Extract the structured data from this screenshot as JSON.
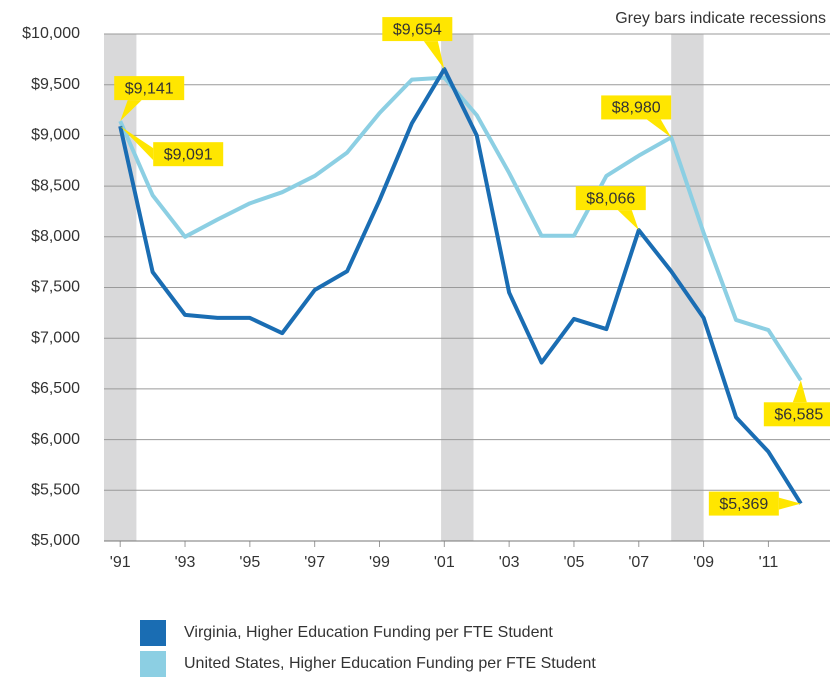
{
  "chart_data": {
    "type": "line",
    "note": "Grey bars indicate recessions",
    "x": [
      1991,
      1992,
      1993,
      1994,
      1995,
      1996,
      1997,
      1998,
      1999,
      2000,
      2001,
      2002,
      2003,
      2004,
      2005,
      2006,
      2007,
      2008,
      2009,
      2010,
      2011,
      2012
    ],
    "series": [
      {
        "name": "Virginia, Higher Education Funding per FTE Student",
        "color": "#1a6db3",
        "values": [
          9091,
          7653,
          7230,
          7200,
          7200,
          7050,
          7475,
          7660,
          8360,
          9120,
          9654,
          9000,
          7450,
          6760,
          7190,
          7090,
          8066,
          7660,
          7200,
          6220,
          5880,
          5369
        ],
        "value_labels": [
          "$9,091",
          null,
          null,
          null,
          null,
          null,
          null,
          null,
          null,
          null,
          "$9,654",
          null,
          null,
          null,
          null,
          null,
          "$8,066",
          null,
          null,
          null,
          null,
          "$5,369"
        ]
      },
      {
        "name": "United States, Higher Education Funding per FTE Student",
        "color": "#8ccfe3",
        "values": [
          9141,
          8410,
          8000,
          8170,
          8330,
          8440,
          8600,
          8830,
          9220,
          9550,
          9570,
          9200,
          8630,
          8010,
          8010,
          8600,
          8800,
          8980,
          8040,
          7180,
          7080,
          6585
        ],
        "value_labels": [
          "$9,141",
          null,
          null,
          null,
          null,
          null,
          null,
          null,
          null,
          null,
          null,
          null,
          null,
          null,
          null,
          null,
          null,
          "$8,980",
          null,
          null,
          null,
          "$6,585"
        ]
      }
    ],
    "recessions": [
      [
        1990.5,
        1991.5
      ],
      [
        2000.9,
        2001.9
      ],
      [
        2008,
        2009
      ]
    ],
    "recession_color": "#d9d9da",
    "label_color": "#ffe600",
    "xlim": [
      1990.5,
      2012.9
    ],
    "xticks": [
      {
        "value": 1991,
        "label": "'91"
      },
      {
        "value": 1993,
        "label": "'93"
      },
      {
        "value": 1995,
        "label": "'95"
      },
      {
        "value": 1997,
        "label": "'97"
      },
      {
        "value": 1999,
        "label": "'99"
      },
      {
        "value": 2001,
        "label": "'01"
      },
      {
        "value": 2003,
        "label": "'03"
      },
      {
        "value": 2005,
        "label": "'05"
      },
      {
        "value": 2007,
        "label": "'07"
      },
      {
        "value": 2009,
        "label": "'09"
      },
      {
        "value": 2011,
        "label": "'11"
      }
    ],
    "ylim": [
      5000,
      10000
    ],
    "yticks": [
      {
        "value": 5000,
        "label": "$5,000"
      },
      {
        "value": 5500,
        "label": "$5,500"
      },
      {
        "value": 6000,
        "label": "$6,000"
      },
      {
        "value": 6500,
        "label": "$6,500"
      },
      {
        "value": 7000,
        "label": "$7,000"
      },
      {
        "value": 7500,
        "label": "$7,500"
      },
      {
        "value": 8000,
        "label": "$8,000"
      },
      {
        "value": 8500,
        "label": "$8,500"
      },
      {
        "value": 9000,
        "label": "$9,000"
      },
      {
        "value": 9500,
        "label": "$9,500"
      },
      {
        "value": 10000,
        "label": "$10,000"
      }
    ],
    "grid": true
  }
}
